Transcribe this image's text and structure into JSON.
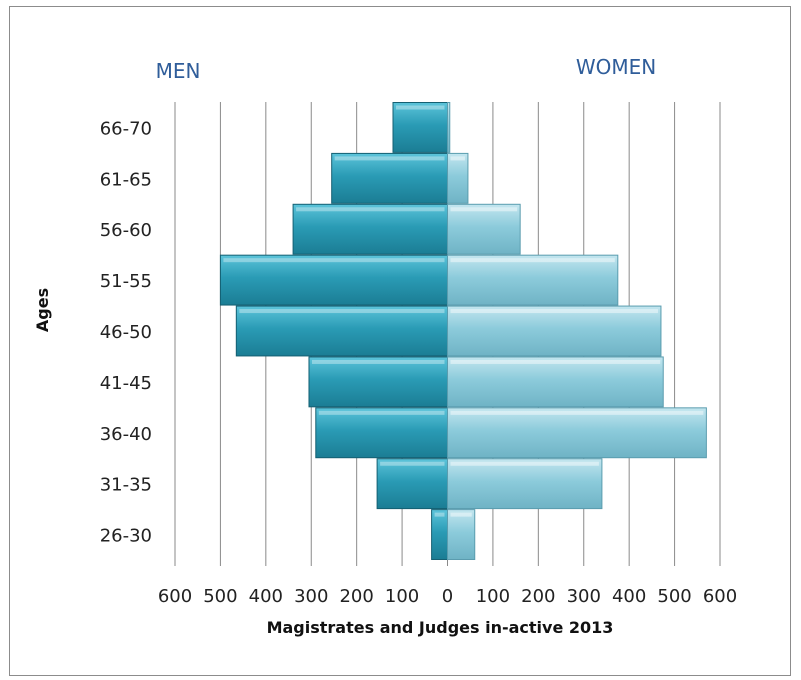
{
  "chart_data": {
    "type": "bar",
    "orientation": "horizontal",
    "layout": "population-pyramid",
    "categories": [
      "26-30",
      "31-35",
      "36-40",
      "41-45",
      "46-50",
      "51-55",
      "56-60",
      "61-65",
      "66-70"
    ],
    "series": [
      {
        "name": "MEN",
        "values": [
          35,
          155,
          290,
          305,
          465,
          500,
          340,
          255,
          120
        ],
        "color": "#2a9bb5"
      },
      {
        "name": "WOMEN",
        "values": [
          60,
          340,
          570,
          475,
          470,
          375,
          160,
          45,
          5
        ],
        "color": "#8ccbdb"
      }
    ],
    "xlabel": "Magistrates and Judges in-active 2013",
    "ylabel": "Ages",
    "xticks": [
      "600",
      "500",
      "400",
      "300",
      "200",
      "100",
      "0",
      "100",
      "200",
      "300",
      "400",
      "500",
      "600"
    ],
    "xlim": [
      -600,
      600
    ],
    "grid": {
      "vertical": true
    }
  }
}
